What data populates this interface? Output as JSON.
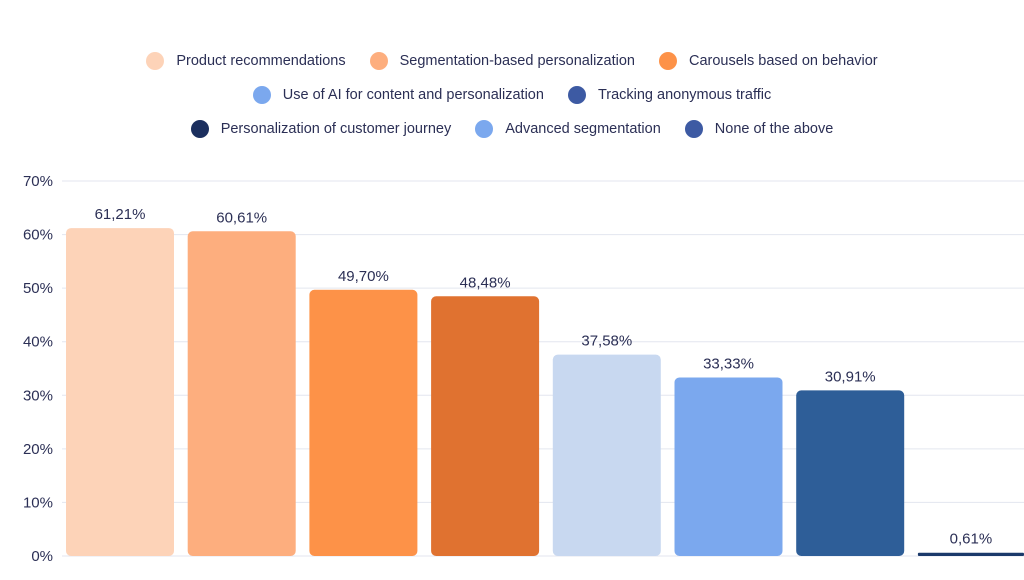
{
  "chart_data": {
    "type": "bar",
    "categories": [
      "Product recommendations",
      "Segmentation-based personalization",
      "Carousels based on behavior",
      "Use of AI for content and personalization",
      "Tracking anonymous traffic",
      "Personalization of customer journey",
      "Advanced segmentation",
      "None of the above"
    ],
    "values": [
      61.21,
      60.61,
      49.7,
      48.48,
      37.58,
      33.33,
      30.91,
      0.61
    ],
    "value_labels": [
      "61,21%",
      "60,61%",
      "49,70%",
      "48,48%",
      "37,58%",
      "33,33%",
      "30,91%",
      "0,61%"
    ],
    "bar_colors": [
      "#fdd3b8",
      "#fdae7e",
      "#fd9248",
      "#e07230",
      "#c8d8f0",
      "#7ba8ee",
      "#2e5e98",
      "#1b3a6b"
    ],
    "legend": [
      {
        "label": "Product recommendations",
        "color": "#fdd3b8"
      },
      {
        "label": "Segmentation-based personalization",
        "color": "#fdae7e"
      },
      {
        "label": "Carousels based on behavior",
        "color": "#fd9248"
      },
      {
        "label": "Use of AI for content and personalization",
        "color": "#7ba8ee"
      },
      {
        "label": "Tracking anonymous traffic",
        "color": "#3d5aa3"
      },
      {
        "label": "Personalization of customer journey",
        "color": "#1b2f5e"
      },
      {
        "label": "Advanced segmentation",
        "color": "#7ba8ee"
      },
      {
        "label": "None of the above",
        "color": "#3d5aa3"
      }
    ],
    "legend_rows": [
      [
        0,
        1,
        2
      ],
      [
        3,
        4
      ],
      [
        5,
        6,
        7
      ]
    ],
    "legend_placement": "top",
    "yticks": [
      "0%",
      "10%",
      "20%",
      "30%",
      "40%",
      "50%",
      "60%",
      "70%"
    ],
    "ylim": [
      0,
      70
    ],
    "grid": true,
    "title": "",
    "xlabel": "",
    "ylabel": ""
  }
}
